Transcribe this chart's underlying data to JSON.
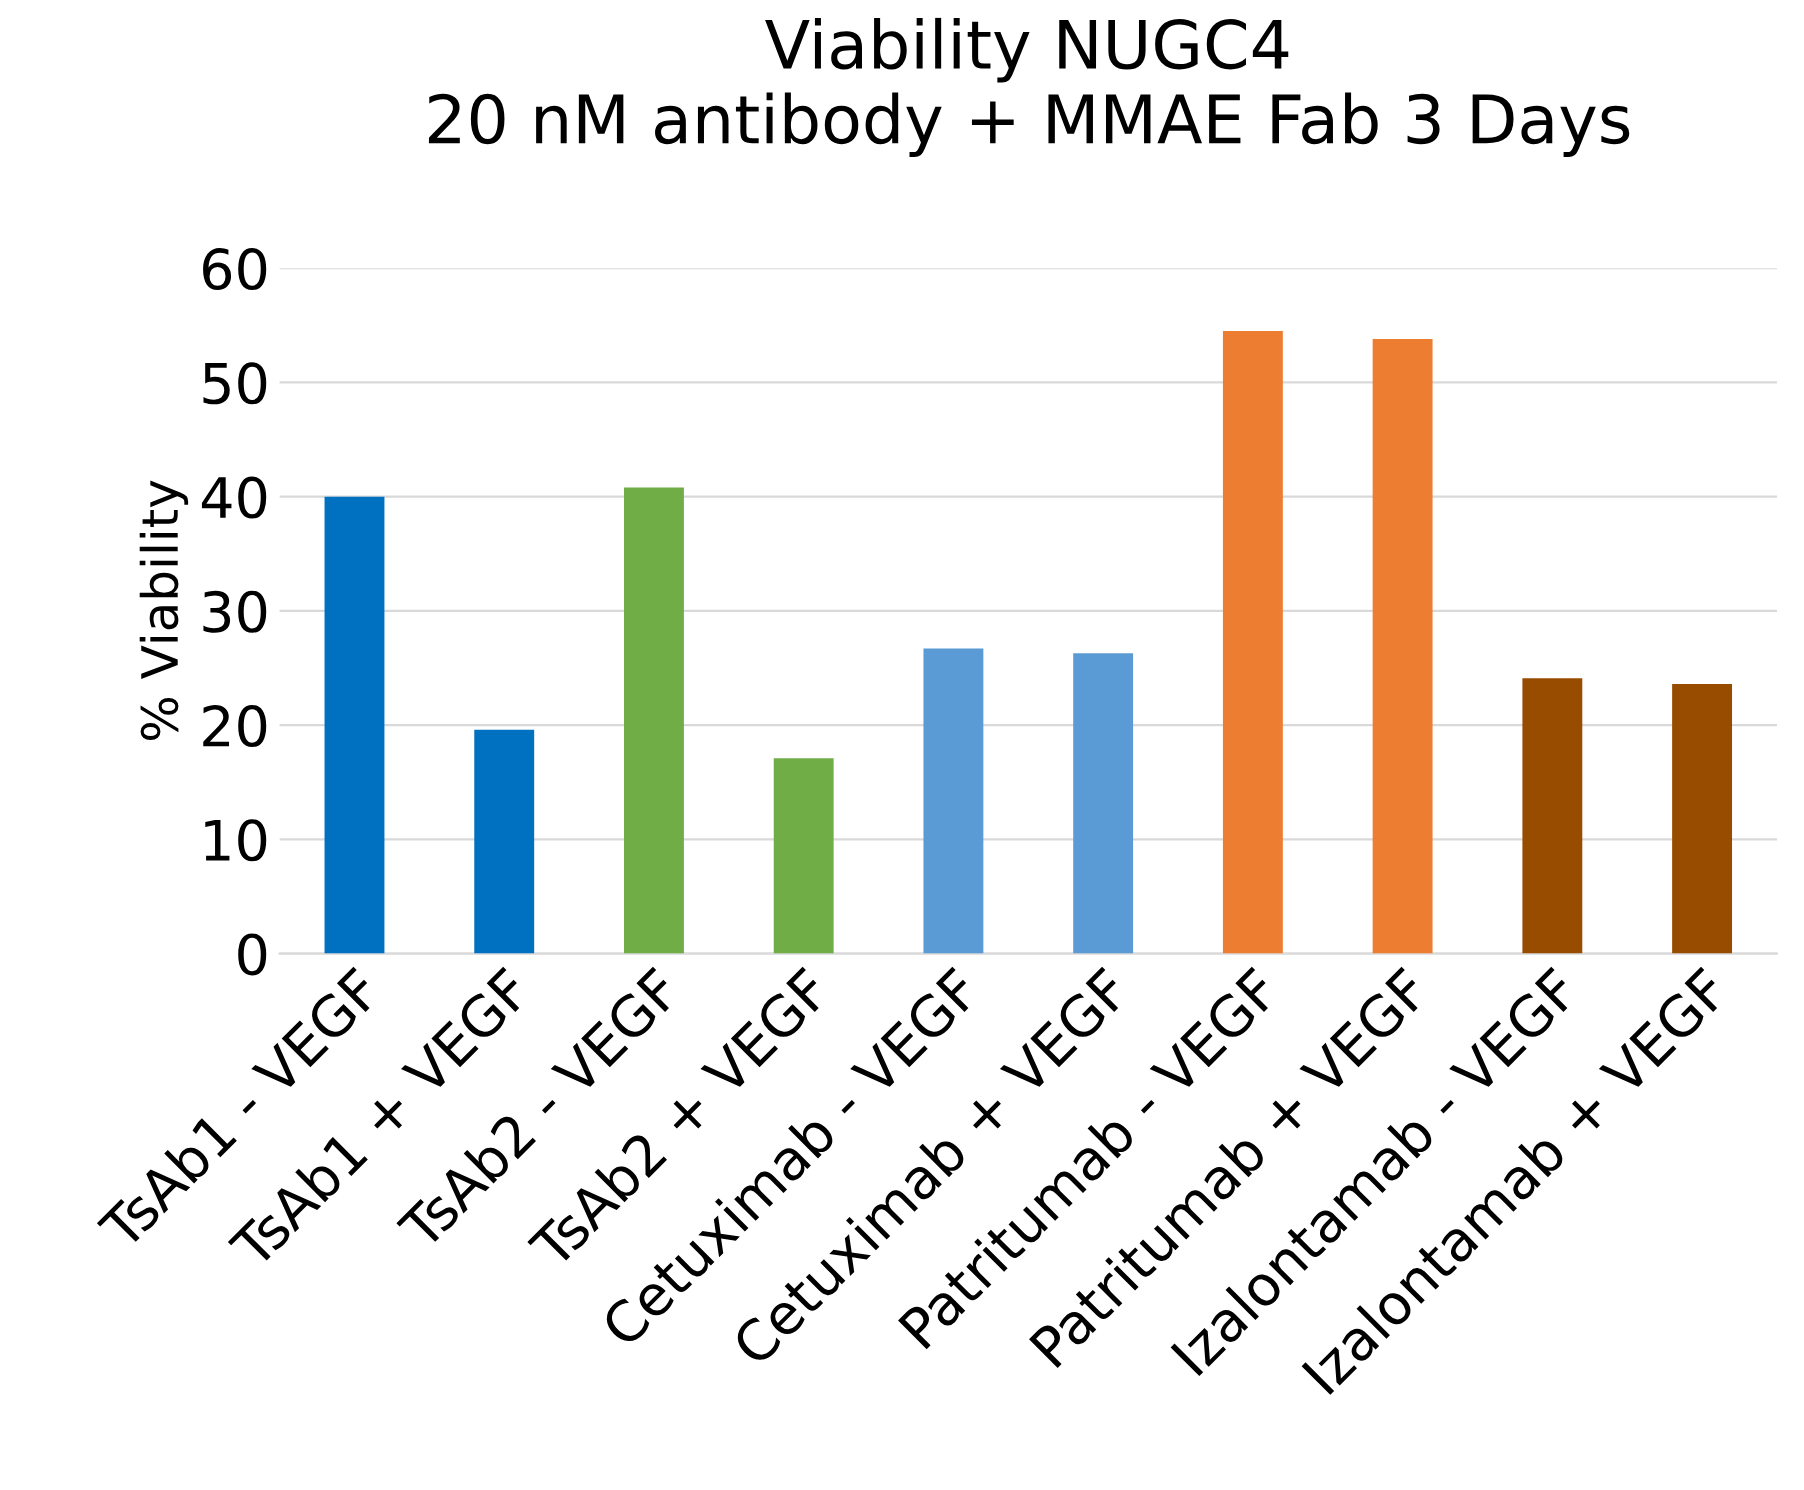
{
  "chart_data": {
    "type": "bar",
    "title": "Viability NUGC4\n20 nM antibody + MMAE Fab 3 Days",
    "ylabel": "% Viability",
    "categories": [
      "TsAb1 - VEGF",
      "TsAb1 + VEGF",
      "TsAb2 - VEGF",
      "TsAb2 + VEGF",
      "Cetuximab - VEGF",
      "Cetuximab + VEGF",
      "Patritumab - VEGF",
      "Patritumab + VEGF",
      "Izalontamab - VEGF",
      "Izalontamab + VEGF"
    ],
    "values": [
      40,
      19.6,
      40.8,
      17.1,
      26.7,
      26.3,
      54.5,
      53.8,
      24.1,
      23.6
    ],
    "colors": [
      "#0070c0",
      "#0070c0",
      "#70ad47",
      "#70ad47",
      "#5b9bd5",
      "#5b9bd5",
      "#ed7d31",
      "#ed7d31",
      "#974c00",
      "#974c00"
    ],
    "ylim": [
      0,
      60
    ],
    "yticks": [
      0,
      10,
      20,
      30,
      40,
      50,
      60
    ],
    "grid": "y"
  }
}
